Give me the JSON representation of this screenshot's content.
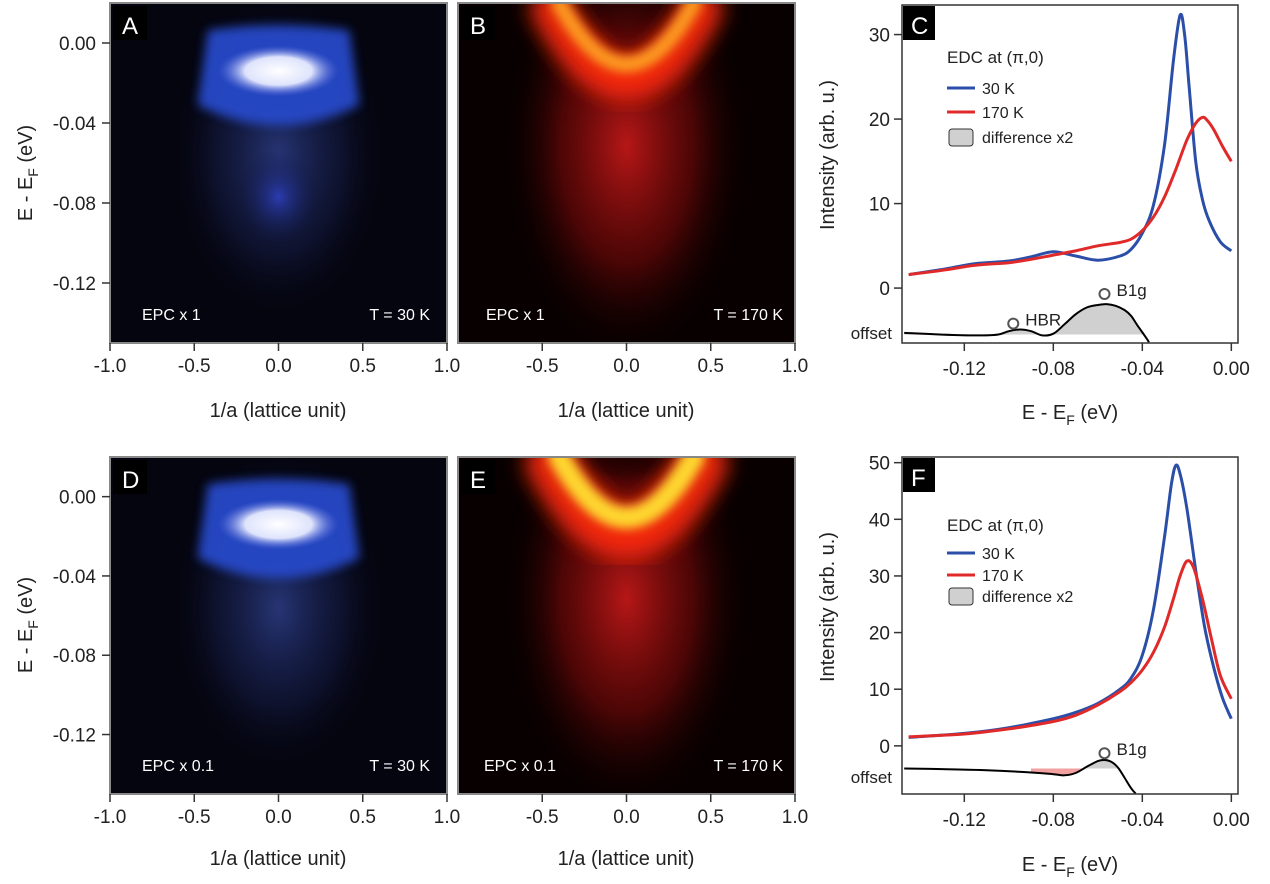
{
  "panels": [
    {
      "id": "A",
      "kind": "image",
      "cmap": "blue",
      "label": "A",
      "annotation_left": "EPC x 1",
      "annotation_right": "T = 30 K",
      "xlabel": "1/a (lattice unit)",
      "xlim": [
        -1.0,
        1.0
      ],
      "xticks": [
        "-1.0",
        "-0.5",
        "0.0",
        "0.5",
        "1.0"
      ],
      "ylabel": "E - E",
      "ylabel_sub": "F",
      "ylabel_unit": " (eV)",
      "ylim": [
        -0.15,
        0.02
      ],
      "yticks": [
        "0.00",
        "-0.04",
        "-0.08",
        "-0.12"
      ]
    },
    {
      "id": "B",
      "kind": "image",
      "cmap": "red",
      "label": "B",
      "annotation_left": "EPC x 1",
      "annotation_right": "T = 170 K",
      "xlabel": "1/a (lattice unit)",
      "xlim": [
        -1.0,
        1.0
      ],
      "xticks": [
        "-0.5",
        "0.0",
        "0.5",
        "1.0"
      ],
      "ylim": [
        -0.15,
        0.02
      ]
    },
    {
      "id": "D",
      "kind": "image",
      "cmap": "blue",
      "label": "D",
      "annotation_left": "EPC x 0.1",
      "annotation_right": "T = 30 K",
      "xlabel": "1/a (lattice unit)",
      "xlim": [
        -1.0,
        1.0
      ],
      "xticks": [
        "-1.0",
        "-0.5",
        "0.0",
        "0.5",
        "1.0"
      ],
      "ylabel": "E - E",
      "ylabel_sub": "F",
      "ylabel_unit": " (eV)",
      "ylim": [
        -0.15,
        0.02
      ],
      "yticks": [
        "0.00",
        "-0.04",
        "-0.08",
        "-0.12"
      ]
    },
    {
      "id": "E",
      "kind": "image",
      "cmap": "red",
      "label": "E",
      "annotation_left": "EPC x 0.1",
      "annotation_right": "T = 170 K",
      "xlabel": "1/a (lattice unit)",
      "xlim": [
        -1.0,
        1.0
      ],
      "xticks": [
        "-0.5",
        "0.0",
        "0.5",
        "1.0"
      ],
      "ylim": [
        -0.15,
        0.02
      ]
    }
  ],
  "chart_data": [
    {
      "id": "C",
      "type": "line",
      "label": "C",
      "legend_title": "EDC at (π,0)",
      "legend_position": "top-left",
      "xlabel": "E - E",
      "xlabel_sub": "F",
      "xlabel_unit": " (eV)",
      "ylabel": "Intensity (arb. u.)",
      "xlim": [
        -0.148,
        0.003
      ],
      "ylim": [
        -6.5,
        33.5
      ],
      "xticks": [
        -0.12,
        -0.08,
        -0.04,
        0.0
      ],
      "xtick_labels": [
        "-0.12",
        "-0.08",
        "-0.04",
        "0.00"
      ],
      "yticks": [
        0,
        10,
        20,
        30
      ],
      "ytick_labels": [
        "0",
        "10",
        "20",
        "30"
      ],
      "offset_label": "offset",
      "offset_value": -5.5,
      "series": [
        {
          "name": "30 K",
          "color": "#2b4fa8",
          "x": [
            -0.145,
            -0.13,
            -0.115,
            -0.1,
            -0.09,
            -0.08,
            -0.07,
            -0.06,
            -0.05,
            -0.045,
            -0.04,
            -0.035,
            -0.03,
            -0.026,
            -0.023,
            -0.021,
            -0.019,
            -0.016,
            -0.013,
            -0.01,
            -0.005,
            0.0
          ],
          "y": [
            1.6,
            2.2,
            2.9,
            3.2,
            3.7,
            4.3,
            3.8,
            3.3,
            3.8,
            4.6,
            6.5,
            9.8,
            17.0,
            27.0,
            32.3,
            30.0,
            24.0,
            15.0,
            10.5,
            8.0,
            5.5,
            4.4
          ]
        },
        {
          "name": "170 K",
          "color": "#e02a2a",
          "x": [
            -0.145,
            -0.13,
            -0.115,
            -0.1,
            -0.09,
            -0.08,
            -0.07,
            -0.06,
            -0.05,
            -0.045,
            -0.04,
            -0.035,
            -0.03,
            -0.025,
            -0.02,
            -0.016,
            -0.013,
            -0.011,
            -0.008,
            -0.004,
            0.0
          ],
          "y": [
            1.6,
            2.1,
            2.7,
            3.0,
            3.4,
            3.9,
            4.4,
            5.0,
            5.4,
            5.8,
            6.8,
            8.4,
            10.8,
            14.0,
            17.5,
            19.5,
            20.2,
            19.9,
            18.8,
            16.8,
            15.0
          ]
        },
        {
          "name": "difference x2",
          "color": "#000000",
          "fill": "#d0d0d0",
          "x": [
            -0.147,
            -0.13,
            -0.115,
            -0.105,
            -0.1,
            -0.095,
            -0.09,
            -0.085,
            -0.08,
            -0.075,
            -0.07,
            -0.065,
            -0.06,
            -0.056,
            -0.052,
            -0.048,
            -0.045,
            -0.042,
            -0.039,
            -0.037
          ],
          "y": [
            -5.3,
            -5.5,
            -5.6,
            -5.5,
            -5.1,
            -4.9,
            -5.1,
            -5.6,
            -5.4,
            -4.3,
            -3.1,
            -2.3,
            -2.0,
            -1.9,
            -2.1,
            -2.6,
            -3.3,
            -4.5,
            -5.6,
            -6.4
          ]
        }
      ],
      "negative_fill": {
        "color": "#f2a0a0",
        "x_from": -0.147,
        "x_to": -0.1
      },
      "annotations": [
        {
          "text": "HBR",
          "x": -0.098,
          "y": -4.2
        },
        {
          "text": "B1g",
          "x": -0.057,
          "y": -0.7
        }
      ]
    },
    {
      "id": "F",
      "type": "line",
      "label": "F",
      "legend_title": "EDC at (π,0)",
      "legend_position": "top-left",
      "xlabel": "E - E",
      "xlabel_sub": "F",
      "xlabel_unit": " (eV)",
      "ylabel": "Intensity (arb. u.)",
      "xlim": [
        -0.148,
        0.003
      ],
      "ylim": [
        -8.5,
        51.0
      ],
      "xticks": [
        -0.12,
        -0.08,
        -0.04,
        0.0
      ],
      "xtick_labels": [
        "-0.12",
        "-0.08",
        "-0.04",
        "0.00"
      ],
      "yticks": [
        0,
        10,
        20,
        30,
        40,
        50
      ],
      "ytick_labels": [
        "0",
        "10",
        "20",
        "30",
        "40",
        "50"
      ],
      "offset_label": "offset",
      "offset_value": -4.0,
      "series": [
        {
          "name": "30 K",
          "color": "#2b4fa8",
          "x": [
            -0.145,
            -0.12,
            -0.1,
            -0.08,
            -0.07,
            -0.06,
            -0.05,
            -0.045,
            -0.04,
            -0.035,
            -0.03,
            -0.027,
            -0.025,
            -0.023,
            -0.02,
            -0.016,
            -0.012,
            -0.008,
            -0.004,
            0.0
          ],
          "y": [
            1.5,
            2.2,
            3.2,
            4.8,
            5.9,
            7.5,
            10.0,
            12.0,
            16.0,
            24.0,
            37.0,
            46.0,
            49.5,
            48.0,
            42.0,
            31.0,
            21.0,
            14.0,
            8.5,
            4.8
          ]
        },
        {
          "name": "170 K",
          "color": "#e02a2a",
          "x": [
            -0.145,
            -0.12,
            -0.1,
            -0.08,
            -0.07,
            -0.06,
            -0.05,
            -0.045,
            -0.04,
            -0.035,
            -0.03,
            -0.026,
            -0.023,
            -0.02,
            -0.017,
            -0.013,
            -0.009,
            -0.005,
            0.0
          ],
          "y": [
            1.6,
            2.1,
            3.0,
            4.3,
            5.4,
            7.2,
            9.6,
            11.2,
            13.4,
            16.5,
            21.0,
            26.0,
            30.0,
            32.6,
            31.5,
            26.0,
            19.0,
            12.5,
            8.3
          ]
        },
        {
          "name": "difference x2",
          "color": "#000000",
          "fill": "#d0d0d0",
          "x": [
            -0.147,
            -0.13,
            -0.11,
            -0.09,
            -0.08,
            -0.075,
            -0.07,
            -0.065,
            -0.06,
            -0.057,
            -0.054,
            -0.051,
            -0.048,
            -0.045,
            -0.043
          ],
          "y": [
            -4.0,
            -4.1,
            -4.3,
            -4.7,
            -5.0,
            -5.2,
            -4.8,
            -3.7,
            -2.7,
            -2.5,
            -2.8,
            -3.8,
            -5.6,
            -7.5,
            -8.4
          ]
        }
      ],
      "negative_fill": {
        "color": "#f2a0a0",
        "x_from": -0.09,
        "x_to": -0.066
      },
      "annotations": [
        {
          "text": "B1g",
          "x": -0.057,
          "y": -1.3
        }
      ]
    }
  ]
}
